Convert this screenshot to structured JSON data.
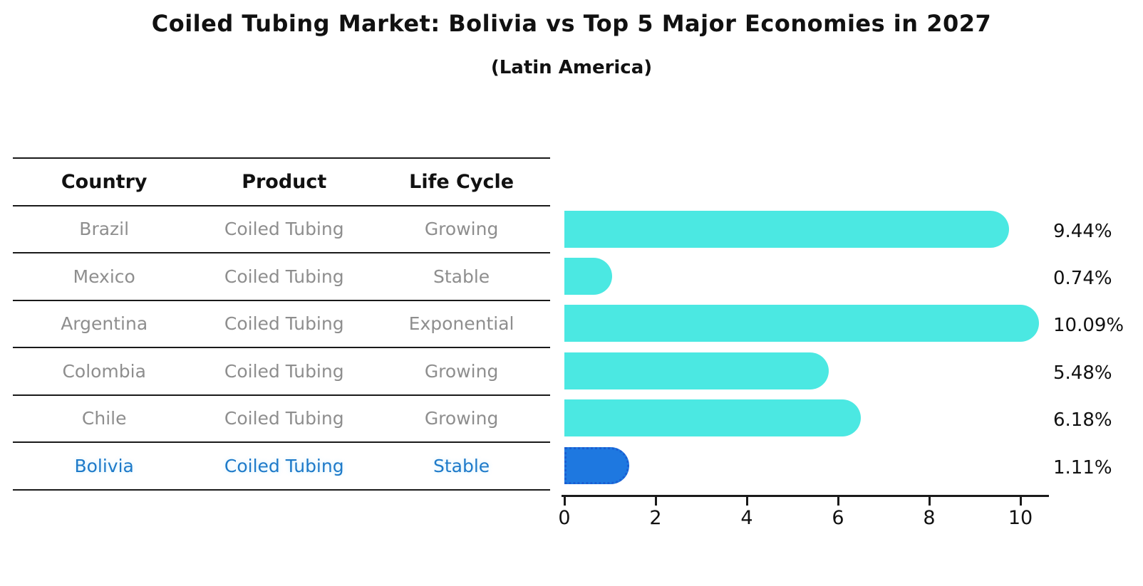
{
  "title": "Coiled Tubing Market: Bolivia vs Top 5 Major Economies in 2027",
  "subtitle": "(Latin America)",
  "table": {
    "headers": [
      "Country",
      "Product",
      "Life Cycle"
    ],
    "rows": [
      {
        "country": "Brazil",
        "product": "Coiled Tubing",
        "life_cycle": "Growing",
        "highlight": false
      },
      {
        "country": "Mexico",
        "product": "Coiled Tubing",
        "life_cycle": "Stable",
        "highlight": false
      },
      {
        "country": "Argentina",
        "product": "Coiled Tubing",
        "life_cycle": "Exponential",
        "highlight": false
      },
      {
        "country": "Colombia",
        "product": "Coiled Tubing",
        "life_cycle": "Growing",
        "highlight": false
      },
      {
        "country": "Chile",
        "product": "Coiled Tubing",
        "life_cycle": "Growing",
        "highlight": false
      },
      {
        "country": "Bolivia",
        "product": "Coiled Tubing",
        "life_cycle": "Stable",
        "highlight": true
      }
    ]
  },
  "chart_data": {
    "type": "bar",
    "orientation": "horizontal",
    "title": "Coiled Tubing Market: Bolivia vs Top 5 Major Economies in 2027",
    "subtitle": "(Latin America)",
    "categories": [
      "Brazil",
      "Mexico",
      "Argentina",
      "Colombia",
      "Chile",
      "Bolivia"
    ],
    "values": [
      9.44,
      0.74,
      10.09,
      5.48,
      6.18,
      1.11
    ],
    "value_labels": [
      "9.44%",
      "0.74%",
      "10.09%",
      "5.48%",
      "6.18%",
      "1.11%"
    ],
    "x_ticks": [
      0,
      2,
      4,
      6,
      8,
      10
    ],
    "xlim": [
      0,
      10.6
    ],
    "grid": false,
    "legend": null,
    "highlight_index": 5,
    "bar_color": "#4be8e2",
    "highlight_bar_color": "#1e78e0",
    "highlight_text_color": "#1e7ac9"
  }
}
